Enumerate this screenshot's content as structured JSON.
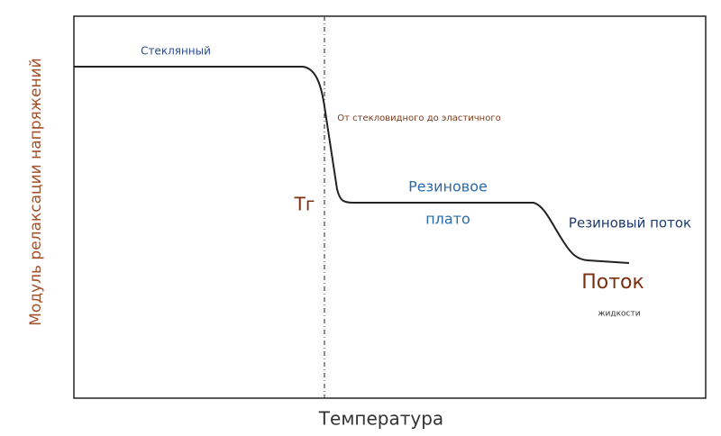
{
  "axes": {
    "x_label": "Температура",
    "y_label": "Модуль релаксации напряжений"
  },
  "regions": {
    "glassy": "Стеклянный",
    "transition": "От стекловидного до эластичного",
    "tg": "Тг",
    "rubbery_plateau_1": "Резиновое",
    "rubbery_plateau_2": "плато",
    "rubbery_flow": "Резиновый поток",
    "liquid_flow_1": "Поток",
    "liquid_flow_2": "жидкости"
  }
}
